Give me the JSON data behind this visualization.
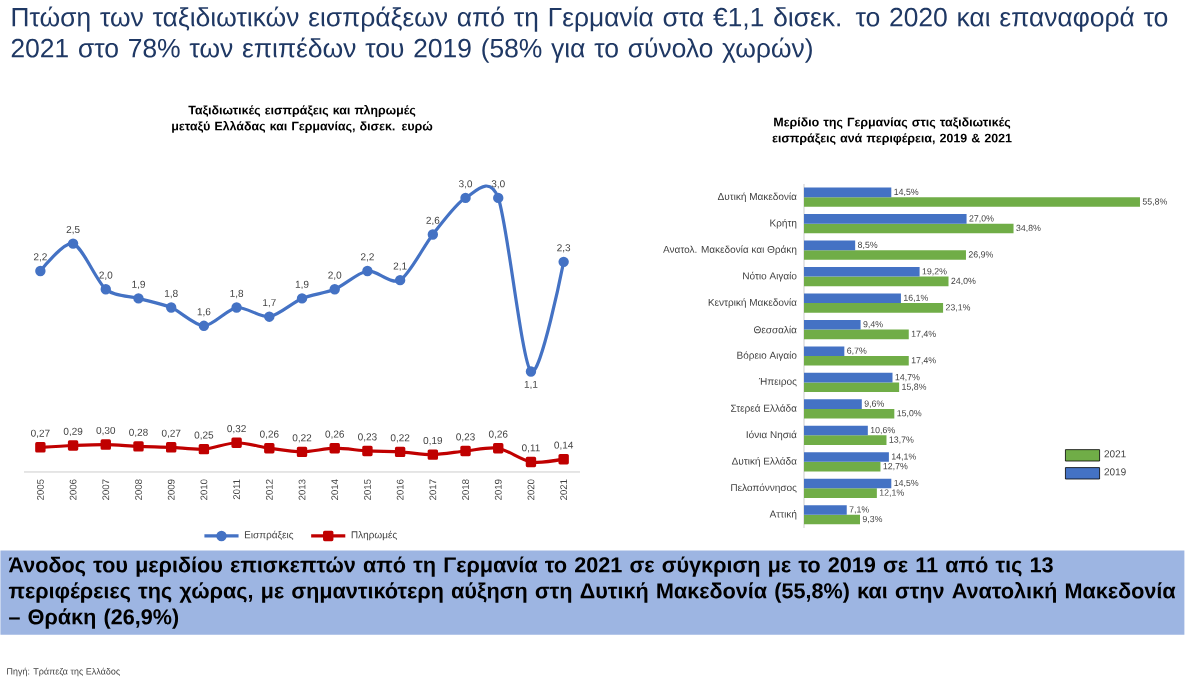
{
  "chart_data": [
    {
      "type": "line",
      "title": "Ταξιδιωτικές εισπράξεις και πληρωμές μεταξύ Ελλάδας και Γερμανίας, δισεκ. ευρώ",
      "categories": [
        "2005",
        "2006",
        "2007",
        "2008",
        "2009",
        "2010",
        "2011",
        "2012",
        "2013",
        "2014",
        "2015",
        "2016",
        "2017",
        "2018",
        "2019",
        "2020",
        "2021"
      ],
      "series": [
        {
          "name": "Εισπράξεις",
          "color": "#4472c4",
          "marker": "circle",
          "values": [
            2.2,
            2.5,
            2.0,
            1.9,
            1.8,
            1.6,
            1.8,
            1.7,
            1.9,
            2.0,
            2.2,
            2.1,
            2.6,
            3.0,
            3.0,
            1.1,
            2.3
          ],
          "value_labels": [
            "2,2",
            "2,5",
            "2,0",
            "1,9",
            "1,8",
            "1,6",
            "1,8",
            "1,7",
            "1,9",
            "2,0",
            "2,2",
            "2,1",
            "2,6",
            "3,0",
            "3,0",
            "1,1",
            "2,3"
          ]
        },
        {
          "name": "Πληρωμές",
          "color": "#c00000",
          "marker": "square",
          "values": [
            0.27,
            0.29,
            0.3,
            0.28,
            0.27,
            0.25,
            0.32,
            0.26,
            0.22,
            0.26,
            0.23,
            0.22,
            0.19,
            0.23,
            0.26,
            0.11,
            0.14
          ],
          "value_labels": [
            "0,27",
            "0,29",
            "0,30",
            "0,28",
            "0,27",
            "0,25",
            "0,32",
            "0,26",
            "0,22",
            "0,26",
            "0,23",
            "0,22",
            "0,19",
            "0,23",
            "0,26",
            "0,11",
            "0,14"
          ]
        }
      ],
      "legend": "bottom",
      "annotations": [
        "Πτώση των ταξιδιωτικών εισπράξεων από τη Γερμανία στα €1,1 δισεκ. το 2020 και επαναφορά το 2021 στο 78% των επιπέδων του 2019 (58% για το σύνολο χωρών)"
      ]
    },
    {
      "type": "bar",
      "orientation": "horizontal",
      "title": "Μερίδιο της Γερμανίας στις ταξιδιωτικές εισπράξεις ανά περιφέρεια, 2019 & 2021",
      "categories": [
        "Δυτική Μακεδονία",
        "Κρήτη",
        "Ανατολ. Μακεδονία και Θράκη",
        "Νότιο Αιγαίο",
        "Κεντρική Μακεδονία",
        "Θεσσαλία",
        "Βόρειο Αιγαίο",
        "Ήπειρος",
        "Στερεά Ελλάδα",
        "Ιόνια Νησιά",
        "Δυτική Ελλάδα",
        "Πελοπόννησος",
        "Αττική"
      ],
      "series": [
        {
          "name": "2021",
          "color": "#70ad47",
          "values": [
            55.8,
            34.8,
            26.9,
            24.0,
            23.1,
            17.4,
            17.4,
            15.8,
            15.0,
            13.7,
            12.7,
            12.1,
            9.3
          ],
          "value_labels": [
            "55,8%",
            "34,8%",
            "26,9%",
            "24,0%",
            "23,1%",
            "17,4%",
            "17,4%",
            "15,8%",
            "15,0%",
            "13,7%",
            "12,7%",
            "12,1%",
            "9,3%"
          ]
        },
        {
          "name": "2019",
          "color": "#4472c4",
          "values": [
            14.5,
            27.0,
            8.5,
            19.2,
            16.1,
            9.4,
            6.7,
            14.7,
            9.6,
            10.6,
            14.1,
            14.5,
            7.1
          ],
          "value_labels": [
            "14,5%",
            "27,0%",
            "8,5%",
            "19,2%",
            "16,1%",
            "9,4%",
            "6,7%",
            "14,7%",
            "9,6%",
            "10,6%",
            "14,1%",
            "14,5%",
            "7,1%"
          ]
        }
      ],
      "legend": "right",
      "annotations": [
        "Άνοδος του μεριδίου επισκεπτών από τη Γερμανία το 2021 σε σύγκριση με το 2019 σε 11 από τις 13 περιφέρειες της χώρας, με σημαντικότερη αύξηση στη Δυτική Μακεδονία (55,8%) και στην Ανατολική Μακεδονία – Θράκη (26,9%)",
        "Πηγή: Τράπεζα της Ελλάδος"
      ]
    }
  ]
}
